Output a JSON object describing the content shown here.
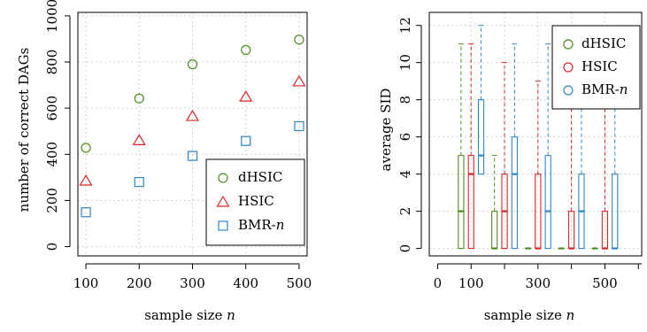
{
  "colors": {
    "dHSIC": "#4d8c1f",
    "HSIC": "#d62728",
    "BMR": "#2e86c8"
  },
  "chart_data": [
    {
      "type": "scatter",
      "xlabel": "sample size n",
      "ylabel": "number of correct DAGs",
      "x_ticks": [
        100,
        200,
        300,
        400,
        500
      ],
      "y_ticks": [
        0,
        200,
        400,
        600,
        800,
        1000
      ],
      "xlim": [
        85,
        515
      ],
      "ylim": [
        -40,
        1015
      ],
      "grid": true,
      "legend_position": "bottom-right",
      "x": [
        100,
        200,
        300,
        400,
        500
      ],
      "series": [
        {
          "name": "dHSIC",
          "marker": "circle",
          "color_key": "dHSIC",
          "values": [
            428,
            642,
            790,
            852,
            897
          ]
        },
        {
          "name": "HSIC",
          "marker": "triangle",
          "color_key": "HSIC",
          "values": [
            286,
            461,
            566,
            650,
            716
          ]
        },
        {
          "name": "BMR-n",
          "marker": "square",
          "color_key": "BMR",
          "values": [
            149,
            280,
            393,
            458,
            522
          ]
        }
      ]
    },
    {
      "type": "box",
      "xlabel": "sample size n",
      "ylabel": "average SID",
      "x_ticks": [
        0,
        100,
        300,
        500
      ],
      "y_ticks": [
        0,
        2,
        4,
        6,
        8,
        10,
        12
      ],
      "xlim": [
        -25,
        610
      ],
      "ylim": [
        -0.4,
        12.7
      ],
      "grid": true,
      "legend_position": "top-right",
      "x": [
        100,
        200,
        300,
        400,
        500
      ],
      "box_offset": 30,
      "box_width": 17,
      "series": [
        {
          "name": "dHSIC",
          "color_key": "dHSIC",
          "boxes": [
            {
              "min": 0,
              "q1": 0,
              "median": 2,
              "q3": 5,
              "max": 11
            },
            {
              "min": 0,
              "q1": 0,
              "median": 0,
              "q3": 2,
              "max": 5
            },
            {
              "min": 0,
              "q1": 0,
              "median": 0,
              "q3": 0,
              "max": 0
            },
            {
              "min": 0,
              "q1": 0,
              "median": 0,
              "q3": 0,
              "max": 0
            },
            {
              "min": 0,
              "q1": 0,
              "median": 0,
              "q3": 0,
              "max": 0
            }
          ]
        },
        {
          "name": "HSIC",
          "color_key": "HSIC",
          "boxes": [
            {
              "min": 0,
              "q1": 0,
              "median": 4,
              "q3": 5,
              "max": 11
            },
            {
              "min": 0,
              "q1": 0,
              "median": 2,
              "q3": 4,
              "max": 10
            },
            {
              "min": 0,
              "q1": 0,
              "median": 0,
              "q3": 4,
              "max": 9
            },
            {
              "min": 0,
              "q1": 0,
              "median": 0,
              "q3": 2,
              "max": 9
            },
            {
              "min": 0,
              "q1": 0,
              "median": 0,
              "q3": 2,
              "max": 9
            }
          ]
        },
        {
          "name": "BMR-n",
          "color_key": "BMR",
          "boxes": [
            {
              "min": 0,
              "q1": 4,
              "median": 5,
              "q3": 8,
              "max": 12
            },
            {
              "min": 0,
              "q1": 0,
              "median": 4,
              "q3": 6,
              "max": 11
            },
            {
              "min": 0,
              "q1": 0,
              "median": 2,
              "q3": 5,
              "max": 11
            },
            {
              "min": 0,
              "q1": 0,
              "median": 2,
              "q3": 4,
              "max": 11
            },
            {
              "min": 0,
              "q1": 0,
              "median": 0,
              "q3": 4,
              "max": 11
            }
          ]
        }
      ]
    }
  ]
}
